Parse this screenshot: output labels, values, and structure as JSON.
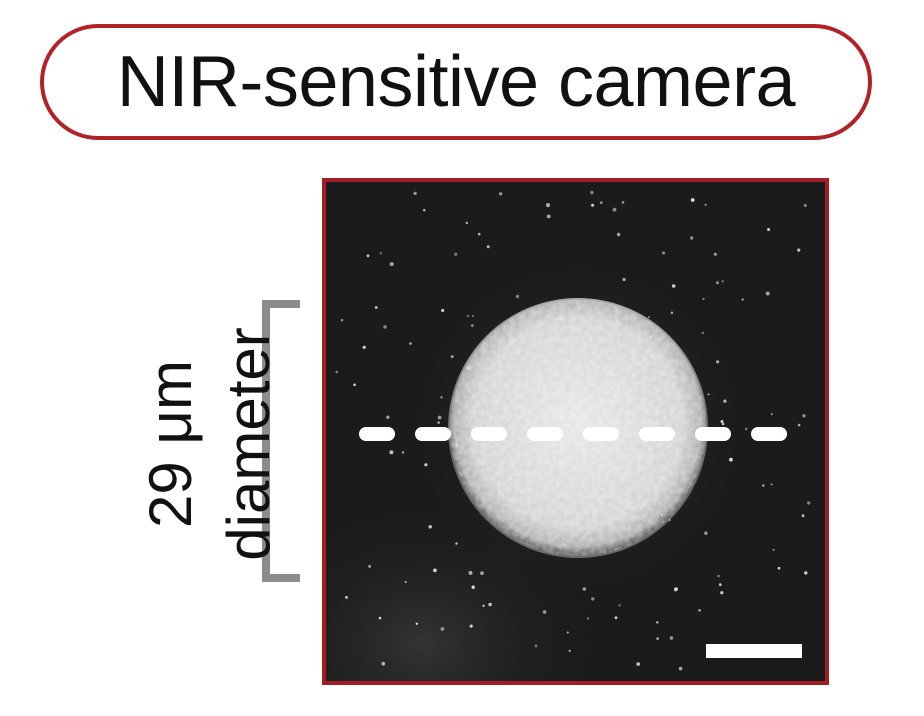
{
  "title": "NIR-sensitive camera",
  "measurement": {
    "value_line": "29 μm",
    "label_line": "diameter"
  },
  "colors": {
    "accent_border": "#b32128",
    "panel_border": "#a31d24",
    "bracket": "#8c8c8c",
    "panel_background": "#1a1a1a",
    "spot": "#e8e8e8"
  }
}
